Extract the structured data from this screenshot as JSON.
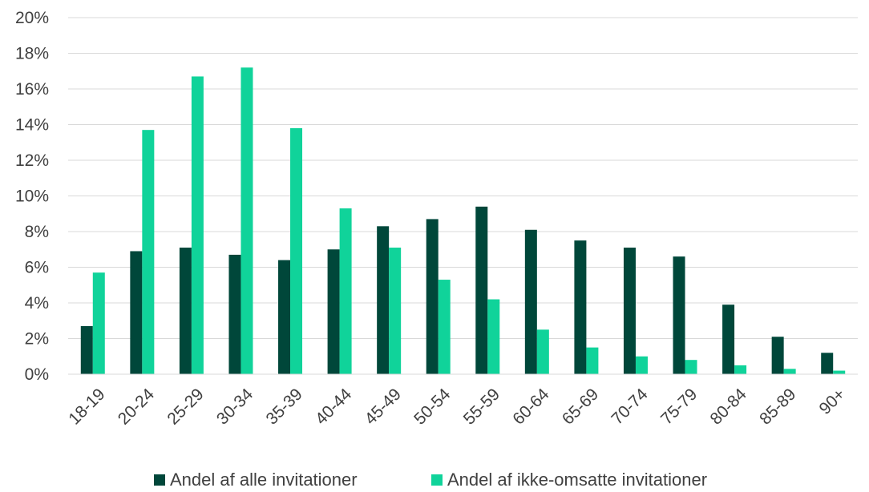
{
  "chart_data": {
    "type": "bar",
    "categories": [
      "18-19",
      "20-24",
      "25-29",
      "30-34",
      "35-39",
      "40-44",
      "45-49",
      "50-54",
      "55-59",
      "60-64",
      "65-69",
      "70-74",
      "75-79",
      "80-84",
      "85-89",
      "90+"
    ],
    "series": [
      {
        "name": "Andel af alle invitationer",
        "color": "#00473a",
        "values": [
          2.7,
          6.9,
          7.1,
          6.7,
          6.4,
          7.0,
          8.3,
          8.7,
          9.4,
          8.1,
          7.5,
          7.1,
          6.6,
          3.9,
          2.1,
          1.2
        ]
      },
      {
        "name": "Andel af ikke-omsatte invitationer",
        "color": "#10d39a",
        "values": [
          5.7,
          13.7,
          16.7,
          17.2,
          13.8,
          9.3,
          7.1,
          5.3,
          4.2,
          2.5,
          1.5,
          1.0,
          0.8,
          0.5,
          0.3,
          0.2
        ]
      }
    ],
    "ylim": [
      0,
      20
    ],
    "yticks": [
      "0%",
      "2%",
      "4%",
      "6%",
      "8%",
      "10%",
      "12%",
      "14%",
      "16%",
      "18%",
      "20%"
    ],
    "grid": true,
    "legend_position": "bottom"
  }
}
